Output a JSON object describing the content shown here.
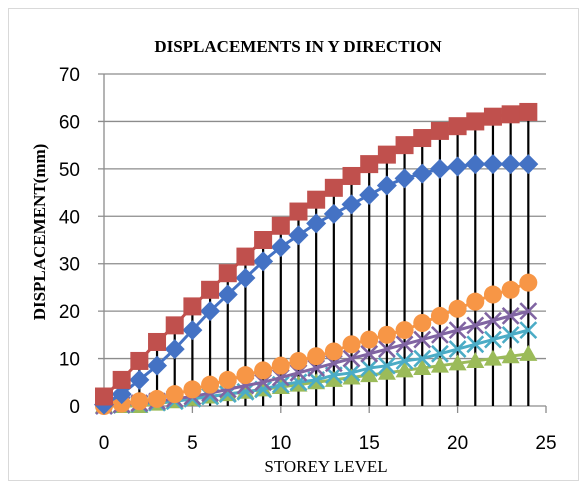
{
  "chart_data": {
    "type": "line",
    "title": "DISPLACEMENTS IN Y DIRECTION",
    "xlabel": "STOREY LEVEL",
    "ylabel": "DISPLACEMENT(mm)",
    "xlim": [
      0,
      25
    ],
    "ylim": [
      0,
      70
    ],
    "xticks": [
      0,
      5,
      10,
      15,
      20,
      25
    ],
    "yticks": [
      0,
      10,
      20,
      30,
      40,
      50,
      60,
      70
    ],
    "grid": "horizontal",
    "legend": "none",
    "x": [
      0,
      1,
      2,
      3,
      4,
      5,
      6,
      7,
      8,
      9,
      10,
      11,
      12,
      13,
      14,
      15,
      16,
      17,
      18,
      19,
      20,
      21,
      22,
      23,
      24
    ],
    "series": [
      {
        "color": "#4472c4",
        "marker": "diamond",
        "values": [
          0.3,
          2.5,
          5.5,
          8.5,
          12,
          16,
          20,
          23.5,
          27,
          30.5,
          33.5,
          36,
          38.5,
          40.5,
          42.5,
          44.5,
          46.5,
          48,
          49,
          50,
          50.5,
          51,
          51,
          51,
          51
        ]
      },
      {
        "color": "#c0504d",
        "marker": "square",
        "values": [
          2,
          5.5,
          9.5,
          13.5,
          17,
          21,
          24.5,
          28,
          31.5,
          35,
          38,
          41,
          43.5,
          46,
          48.5,
          51,
          53,
          55,
          56.5,
          58,
          59,
          60,
          61,
          61.5,
          62
        ]
      },
      {
        "color": "#9bbb59",
        "marker": "triangle",
        "values": [
          0,
          0,
          0,
          0.5,
          1,
          1.5,
          2,
          2.5,
          3,
          3.5,
          4,
          4.5,
          5,
          5.5,
          6,
          6.5,
          7,
          7.5,
          8,
          8.5,
          9,
          9.5,
          10,
          10.5,
          11
        ]
      },
      {
        "color": "#8064a2",
        "marker": "x",
        "values": [
          0,
          0.3,
          0.6,
          1,
          1.5,
          2,
          2.7,
          3.5,
          4.3,
          5,
          6,
          7,
          8,
          9,
          10,
          11,
          12,
          13,
          14,
          15,
          16,
          17,
          18,
          19,
          20
        ]
      },
      {
        "color": "#4bacc6",
        "marker": "x",
        "values": [
          0,
          0.2,
          0.4,
          0.7,
          1,
          1.5,
          2,
          2.5,
          3,
          3.5,
          4.5,
          5,
          5.5,
          6.5,
          7,
          8,
          8.5,
          9.5,
          10,
          11,
          12,
          13,
          14,
          15,
          16
        ]
      },
      {
        "color": "#f79646",
        "marker": "circle",
        "values": [
          0,
          0.5,
          1,
          1.5,
          2.5,
          3.5,
          4.5,
          5.5,
          6.5,
          7.5,
          8.5,
          9.5,
          10.5,
          11.5,
          13,
          14,
          15,
          16,
          17.5,
          19,
          20.5,
          22,
          23.5,
          24.5,
          26
        ]
      }
    ],
    "error_bars": {
      "color": "#000000",
      "low": [
        0,
        0,
        0,
        0,
        0,
        0,
        0,
        0,
        0,
        0,
        0,
        0,
        0,
        0,
        0,
        0,
        0,
        0,
        0,
        0,
        0,
        0,
        0,
        0,
        0
      ],
      "high": [
        2,
        5.5,
        9.5,
        13.5,
        17,
        21,
        24.5,
        28,
        31.5,
        35,
        38,
        41,
        43.5,
        46,
        48.5,
        51,
        53,
        55,
        56.5,
        58,
        59,
        60,
        61,
        61.5,
        62
      ]
    }
  }
}
